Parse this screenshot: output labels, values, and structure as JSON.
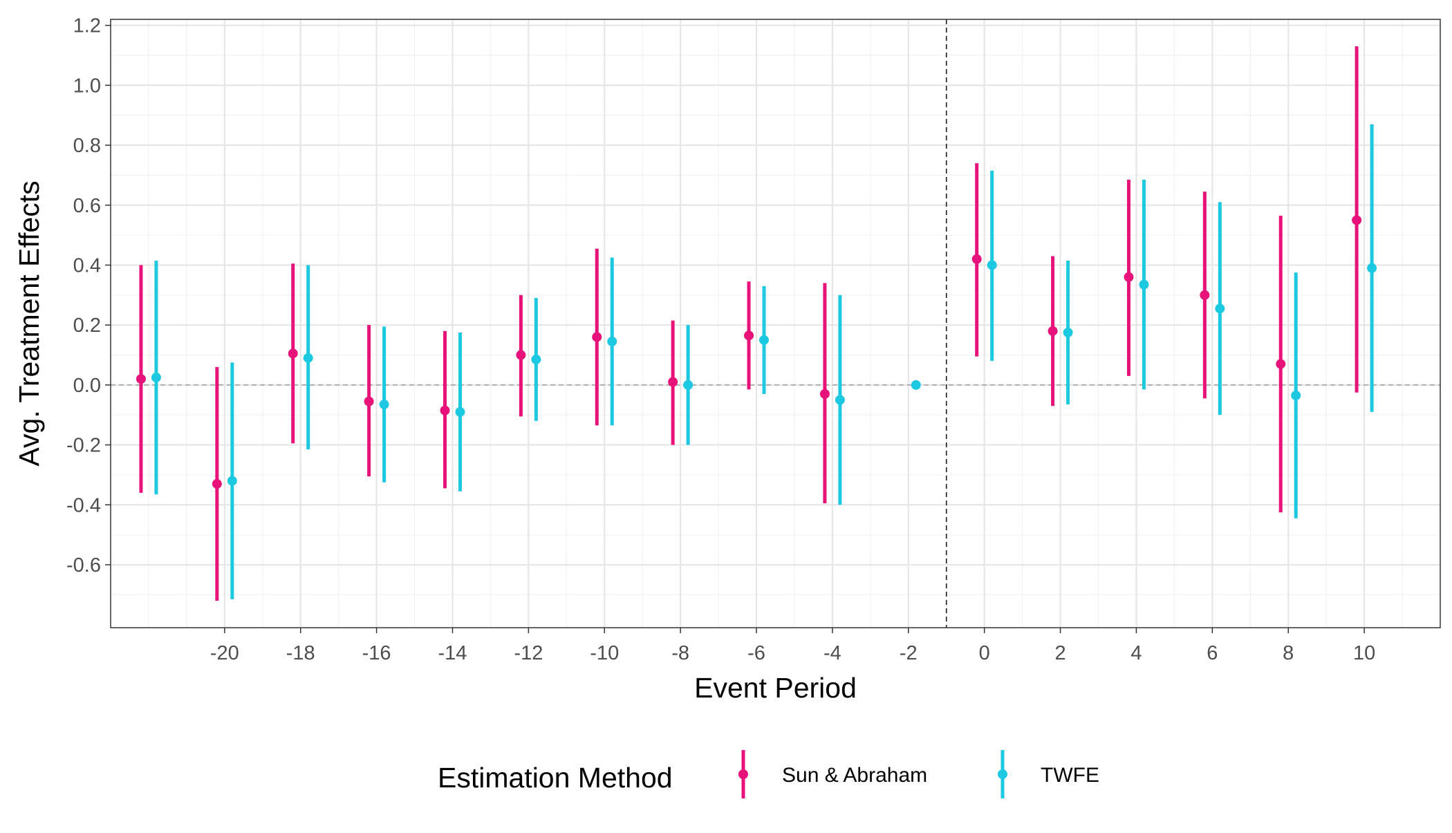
{
  "chart_data": {
    "type": "scatter",
    "subtype": "point-range (event study)",
    "xlabel": "Event Period",
    "ylabel": "Avg. Treatment Effects",
    "xlim": [
      -23,
      12
    ],
    "ylim": [
      -0.81,
      1.22
    ],
    "x_ticks": [
      -20,
      -18,
      -16,
      -14,
      -12,
      -10,
      -8,
      -6,
      -4,
      -2,
      0,
      2,
      4,
      6,
      8,
      10
    ],
    "y_ticks": [
      -0.6,
      -0.4,
      -0.2,
      0.0,
      0.2,
      0.4,
      0.6,
      0.8,
      1.0,
      1.2
    ],
    "x_tick_labels": [
      "-20",
      "-18",
      "-16",
      "-14",
      "-12",
      "-10",
      "-8",
      "-6",
      "-4",
      "-2",
      "0",
      "2",
      "4",
      "6",
      "8",
      "10"
    ],
    "y_tick_labels": [
      "-0.6",
      "-0.4",
      "-0.2",
      "0.0",
      "0.2",
      "0.4",
      "0.6",
      "0.8",
      "1.0",
      "1.2"
    ],
    "reference_lines": {
      "horizontal_y": 0,
      "vertical_x": -1
    },
    "grid": true,
    "legend": {
      "title": "Estimation Method",
      "position": "bottom"
    },
    "series": [
      {
        "name": "Sun & Abraham",
        "color": "#E7137A",
        "points": [
          {
            "x": -22,
            "estimate": 0.02,
            "low": -0.36,
            "high": 0.4
          },
          {
            "x": -20,
            "estimate": -0.33,
            "low": -0.72,
            "high": 0.06
          },
          {
            "x": -18,
            "estimate": 0.105,
            "low": -0.195,
            "high": 0.405
          },
          {
            "x": -16,
            "estimate": -0.055,
            "low": -0.305,
            "high": 0.2
          },
          {
            "x": -14,
            "estimate": -0.085,
            "low": -0.345,
            "high": 0.18
          },
          {
            "x": -12,
            "estimate": 0.1,
            "low": -0.105,
            "high": 0.3
          },
          {
            "x": -10,
            "estimate": 0.16,
            "low": -0.135,
            "high": 0.455
          },
          {
            "x": -8,
            "estimate": 0.01,
            "low": -0.2,
            "high": 0.215
          },
          {
            "x": -6,
            "estimate": 0.165,
            "low": -0.015,
            "high": 0.345
          },
          {
            "x": -4,
            "estimate": -0.03,
            "low": -0.395,
            "high": 0.34
          },
          {
            "x": 0,
            "estimate": 0.42,
            "low": 0.095,
            "high": 0.74
          },
          {
            "x": 2,
            "estimate": 0.18,
            "low": -0.07,
            "high": 0.43
          },
          {
            "x": 4,
            "estimate": 0.36,
            "low": 0.03,
            "high": 0.685
          },
          {
            "x": 6,
            "estimate": 0.3,
            "low": -0.045,
            "high": 0.645
          },
          {
            "x": 8,
            "estimate": 0.07,
            "low": -0.425,
            "high": 0.565
          },
          {
            "x": 10,
            "estimate": 0.55,
            "low": -0.025,
            "high": 1.13
          }
        ]
      },
      {
        "name": "TWFE",
        "color": "#1CC9E1",
        "points": [
          {
            "x": -22,
            "estimate": 0.025,
            "low": -0.365,
            "high": 0.415
          },
          {
            "x": -20,
            "estimate": -0.32,
            "low": -0.715,
            "high": 0.075
          },
          {
            "x": -18,
            "estimate": 0.09,
            "low": -0.215,
            "high": 0.4
          },
          {
            "x": -16,
            "estimate": -0.065,
            "low": -0.325,
            "high": 0.195
          },
          {
            "x": -14,
            "estimate": -0.09,
            "low": -0.355,
            "high": 0.175
          },
          {
            "x": -12,
            "estimate": 0.085,
            "low": -0.12,
            "high": 0.29
          },
          {
            "x": -10,
            "estimate": 0.145,
            "low": -0.135,
            "high": 0.425
          },
          {
            "x": -8,
            "estimate": 0.0,
            "low": -0.2,
            "high": 0.2
          },
          {
            "x": -6,
            "estimate": 0.15,
            "low": -0.03,
            "high": 0.33
          },
          {
            "x": -4,
            "estimate": -0.05,
            "low": -0.4,
            "high": 0.3
          },
          {
            "x": -2,
            "estimate": 0.0,
            "low": 0.0,
            "high": 0.0
          },
          {
            "x": 0,
            "estimate": 0.4,
            "low": 0.08,
            "high": 0.715
          },
          {
            "x": 2,
            "estimate": 0.175,
            "low": -0.065,
            "high": 0.415
          },
          {
            "x": 4,
            "estimate": 0.335,
            "low": -0.015,
            "high": 0.685
          },
          {
            "x": 6,
            "estimate": 0.255,
            "low": -0.1,
            "high": 0.61
          },
          {
            "x": 8,
            "estimate": -0.035,
            "low": -0.445,
            "high": 0.375
          },
          {
            "x": 10,
            "estimate": 0.39,
            "low": -0.09,
            "high": 0.87
          }
        ]
      }
    ]
  }
}
